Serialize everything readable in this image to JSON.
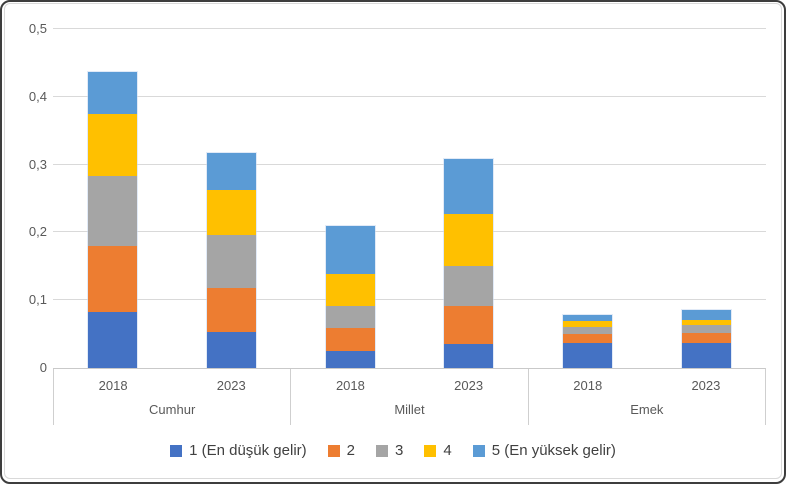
{
  "frame": {
    "background": "#ffffff",
    "outer_border_color": "#3d3d3d",
    "chart_border_color": "#d9d9d9",
    "gridline_color": "#d9d9d9",
    "axis_text_color": "#595959",
    "legend_text_color": "#404040"
  },
  "chart_data": {
    "type": "bar",
    "stacked": true,
    "title": "",
    "xlabel": "",
    "ylabel": "",
    "grid": true,
    "legend_position": "bottom",
    "y_axis": {
      "min": 0,
      "max": 0.5,
      "step": 0.1,
      "tick_labels": [
        "0",
        "0,1",
        "0,2",
        "0,3",
        "0,4",
        "0,5"
      ],
      "decimal_separator": "comma"
    },
    "series": [
      {
        "name": "1 (En düşük gelir)",
        "color": "#4472C4"
      },
      {
        "name": "2",
        "color": "#ED7D31"
      },
      {
        "name": "3",
        "color": "#A5A5A5"
      },
      {
        "name": "4",
        "color": "#FFC000"
      },
      {
        "name": "5 (En yüksek gelir)",
        "color": "#5B9BD5"
      }
    ],
    "groups": [
      {
        "label": "Cumhur",
        "bars": [
          {
            "label": "2018",
            "values": [
              0.083,
              0.097,
              0.103,
              0.092,
              0.062
            ],
            "total": 0.437
          },
          {
            "label": "2023",
            "values": [
              0.053,
              0.065,
              0.078,
              0.067,
              0.054
            ],
            "total": 0.317
          }
        ]
      },
      {
        "label": "Millet",
        "bars": [
          {
            "label": "2018",
            "values": [
              0.025,
              0.034,
              0.033,
              0.046,
              0.072
            ],
            "total": 0.21
          },
          {
            "label": "2023",
            "values": [
              0.035,
              0.057,
              0.059,
              0.076,
              0.081
            ],
            "total": 0.308
          }
        ]
      },
      {
        "label": "Emek",
        "bars": [
          {
            "label": "2018",
            "values": [
              0.037,
              0.013,
              0.011,
              0.009,
              0.008
            ],
            "total": 0.078
          },
          {
            "label": "2023",
            "values": [
              0.037,
              0.015,
              0.012,
              0.007,
              0.015
            ],
            "total": 0.086
          }
        ]
      }
    ]
  }
}
